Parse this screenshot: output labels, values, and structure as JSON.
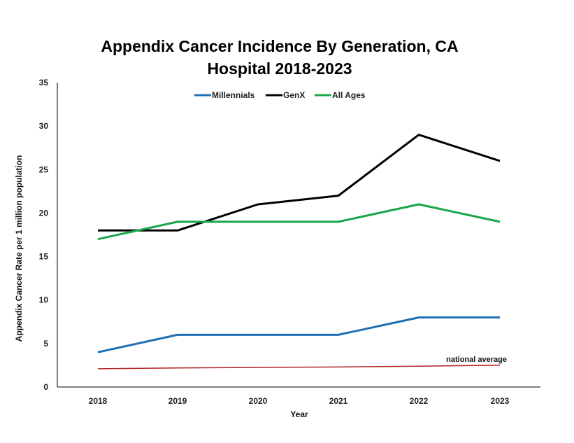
{
  "chart_data": {
    "type": "line",
    "title_line1": "Appendix Cancer Incidence By Generation, CA",
    "title_line2": "Hospital 2018-2023",
    "xlabel": "Year",
    "ylabel": "Appendix Cancer Rate per 1 million population",
    "categories": [
      "2018",
      "2019",
      "2020",
      "2021",
      "2022",
      "2023"
    ],
    "ylim": [
      0,
      35
    ],
    "yticks": [
      0,
      5,
      10,
      15,
      20,
      25,
      30,
      35
    ],
    "legend_position": "top-center",
    "grid": false,
    "series": [
      {
        "name": "Millennials",
        "color": "#1f6fb2",
        "values": [
          4,
          6,
          6,
          6,
          8,
          8
        ]
      },
      {
        "name": "GenX",
        "color": "#000000",
        "values": [
          18,
          18,
          21,
          22,
          29,
          26
        ]
      },
      {
        "name": "All Ages",
        "color": "#1aa64a",
        "values": [
          17,
          19,
          19,
          19,
          21,
          19
        ]
      }
    ],
    "reference_line": {
      "label": "national average",
      "color": "#b22222",
      "values": [
        2.1,
        2.2,
        2.25,
        2.3,
        2.4,
        2.5
      ]
    }
  }
}
